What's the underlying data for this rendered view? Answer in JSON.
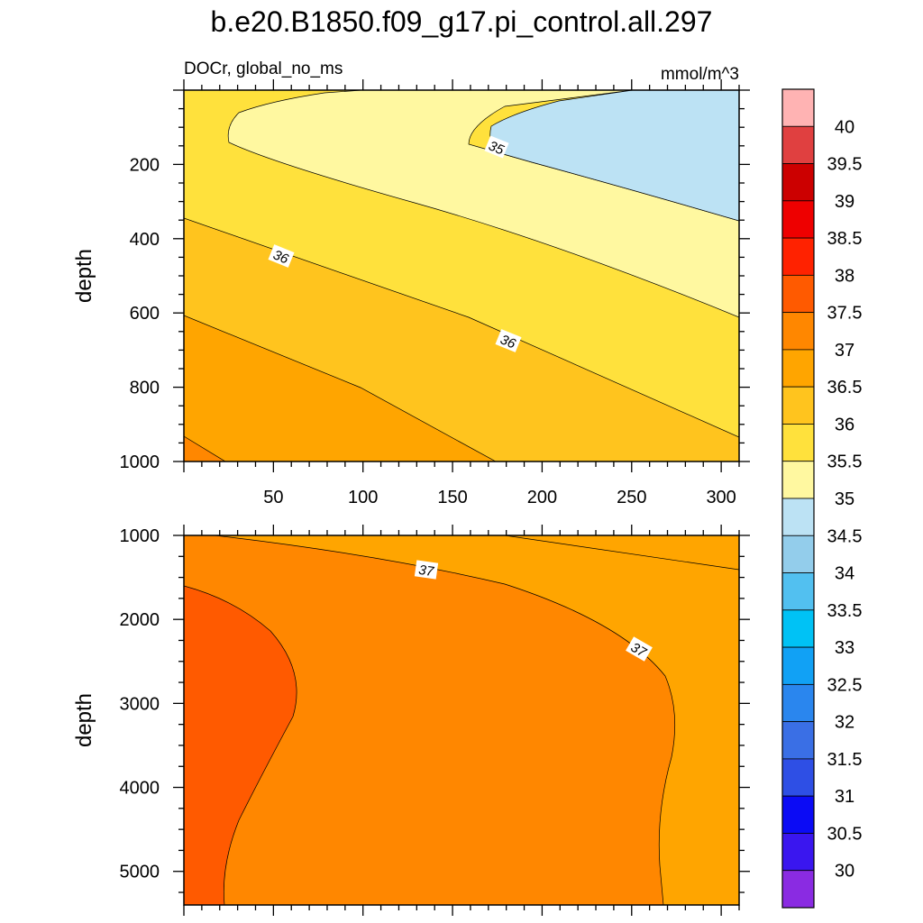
{
  "title": "b.e20.B1850.f09_g17.pi_control.all.297",
  "subtitle_left": "DOCr, global_no_ms",
  "subtitle_right": "mmol/m^3",
  "chart_data": [
    {
      "type": "contour",
      "name": "upper-panel",
      "xlabel": "",
      "ylabel": "depth",
      "xlim": [
        0,
        310
      ],
      "ylim": [
        1000,
        0
      ],
      "x_ticks": [
        50,
        100,
        150,
        200,
        250,
        300
      ],
      "y_ticks": [
        200,
        400,
        600,
        800,
        1000
      ],
      "contour_labels": [
        "35",
        "36",
        "36"
      ]
    },
    {
      "type": "contour",
      "name": "lower-panel",
      "xlabel": "",
      "ylabel": "depth",
      "xlim": [
        0,
        310
      ],
      "ylim": [
        5400,
        1000
      ],
      "y_ticks": [
        1000,
        2000,
        3000,
        4000,
        5000
      ],
      "contour_labels": [
        "37",
        "37"
      ]
    }
  ],
  "colorbar": {
    "labels": [
      "40",
      "39.5",
      "39",
      "38.5",
      "38",
      "37.5",
      "37",
      "36.5",
      "36",
      "35.5",
      "35",
      "34.5",
      "34",
      "33.5",
      "33",
      "32.5",
      "32",
      "31.5",
      "31",
      "30.5",
      "30"
    ],
    "colors": [
      "#ffb3b3",
      "#e04040",
      "#cc0000",
      "#ee0000",
      "#ff2200",
      "#ff5a00",
      "#ff8700",
      "#ffa500",
      "#ffc41e",
      "#ffe13c",
      "#fff8a0",
      "#bce2f4",
      "#93cdeb",
      "#52c0f0",
      "#00c2f5",
      "#11a1f5",
      "#2a86ee",
      "#3a6fe5",
      "#2e4fe5",
      "#0b0bf5",
      "#3a16ef",
      "#8a2be2"
    ]
  }
}
